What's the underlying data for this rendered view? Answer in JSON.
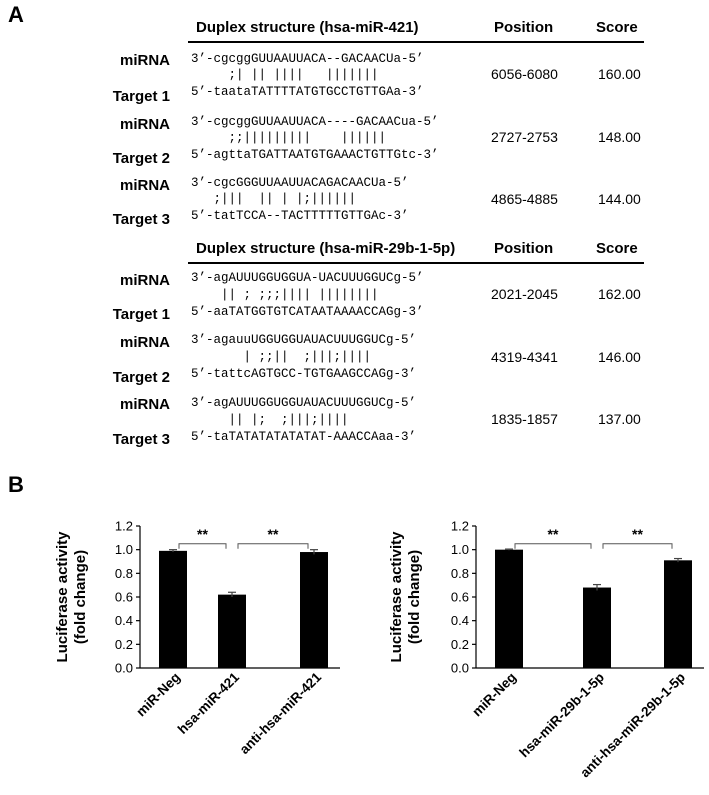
{
  "panel_a": {
    "letter": "A",
    "tables": [
      {
        "header": {
          "duplex": "Duplex structure (hsa-miR-421)",
          "position": "Position",
          "score": "Score"
        },
        "rows": [
          {
            "mirna_label": "miRNA",
            "target_label": "Target 1",
            "mirna_seq": "3’-cgcggGUUAAUUACA--GACAACUa-5’",
            "pairing": "     ;| || ||||   |||||||",
            "target_seq": "5’-taataTATTTTATGTGCCTGTTGAa-3’",
            "position": "6056-6080",
            "score": "160.00"
          },
          {
            "mirna_label": "miRNA",
            "target_label": "Target 2",
            "mirna_seq": "3’-cgcggGUUAAUUACA----GACAACua-5’",
            "pairing": "     ;;|||||||||    ||||||",
            "target_seq": "5’-agttaTGATTAATGTGAAACTGTTGtc-3’",
            "position": "2727-2753",
            "score": "148.00"
          },
          {
            "mirna_label": "miRNA",
            "target_label": "Target 3",
            "mirna_seq": "3’-cgcGGGUUAAUUACAGACAACUa-5’",
            "pairing": "   ;|||  || | |;||||||",
            "target_seq": "5’-tatTCCA--TACTTTTTGTTGAc-3’",
            "position": "4865-4885",
            "score": "144.00"
          }
        ]
      },
      {
        "header": {
          "duplex": "Duplex structure (hsa-miR-29b-1-5p)",
          "position": "Position",
          "score": "Score"
        },
        "rows": [
          {
            "mirna_label": "miRNA",
            "target_label": "Target 1",
            "mirna_seq": "3’-agAUUUGGUGGUA-UACUUUGGUCg-5’",
            "pairing": "    || ; ;;;|||| ||||||||",
            "target_seq": "5’-aaTATGGTGTCATAATAAAACCAGg-3’",
            "position": "2021-2045",
            "score": "162.00"
          },
          {
            "mirna_label": "miRNA",
            "target_label": "Target 2",
            "mirna_seq": "3’-agauuUGGUGGUAUACUUUGGUCg-5’",
            "pairing": "       | ;;||  ;|||;||||",
            "target_seq": "5’-tattcAGTGCC-TGTGAAGCCAGg-3’",
            "position": "4319-4341",
            "score": "146.00"
          },
          {
            "mirna_label": "miRNA",
            "target_label": "Target 3",
            "mirna_seq": "3’-agAUUUGGUGGUAUACUUUGGUCg-5’",
            "pairing": "     || |;  ;|||;||||",
            "target_seq": "5’-taTATATATATATAT-AAACCAaa-3’",
            "position": "1835-1857",
            "score": "137.00"
          }
        ]
      }
    ]
  },
  "panel_b": {
    "letter": "B"
  },
  "chart_data": [
    {
      "type": "bar",
      "categories": [
        "miR-Neg",
        "hsa-miR-421",
        "anti-hsa-miR-421"
      ],
      "values": [
        0.99,
        0.62,
        0.98
      ],
      "errors": [
        0.01,
        0.02,
        0.02
      ],
      "ylabel_line1": "Luciferase activity",
      "ylabel_line2": "(fold change)",
      "ylim": [
        0,
        1.2
      ],
      "yticks": [
        "0.0",
        "0.2",
        "0.4",
        "0.6",
        "0.8",
        "1.0",
        "1.2"
      ],
      "significance": [
        {
          "from": 0,
          "to": 1,
          "label": "**"
        },
        {
          "from": 1,
          "to": 2,
          "label": "**"
        }
      ],
      "bar_color": "#000000"
    },
    {
      "type": "bar",
      "categories": [
        "miR-Neg",
        "hsa-miR-29b-1-5p",
        "anti-hsa-miR-29b-1-5p"
      ],
      "values": [
        1.0,
        0.68,
        0.91
      ],
      "errors": [
        0.005,
        0.025,
        0.015
      ],
      "ylabel_line1": "Luciferase activity",
      "ylabel_line2": "(fold change)",
      "ylim": [
        0,
        1.2
      ],
      "yticks": [
        "0.0",
        "0.2",
        "0.4",
        "0.6",
        "0.8",
        "1.0",
        "1.2"
      ],
      "significance": [
        {
          "from": 0,
          "to": 1,
          "label": "**"
        },
        {
          "from": 1,
          "to": 2,
          "label": "**"
        }
      ],
      "bar_color": "#000000"
    }
  ]
}
